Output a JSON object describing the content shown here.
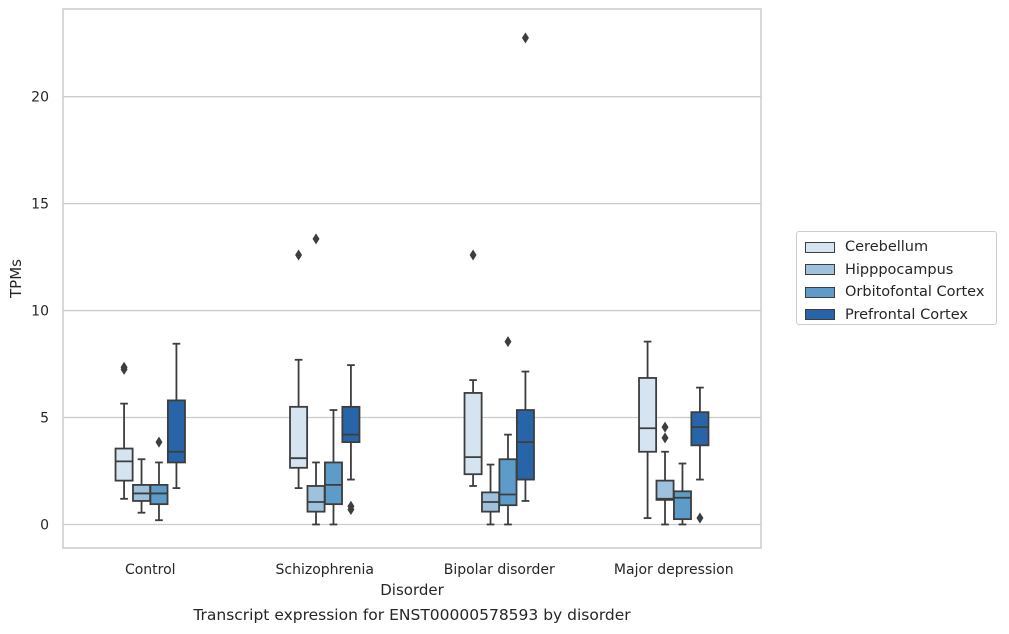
{
  "chart_data": {
    "type": "box",
    "xlabel": "Disorder",
    "ylabel": "TPMs",
    "caption": "Transcript expression for ENST00000578593 by disorder",
    "categories": [
      "Control",
      "Schizophrenia",
      "Bipolar disorder",
      "Major depression"
    ],
    "ylim": [
      -1.1,
      24.1
    ],
    "yticks": [
      0,
      5,
      10,
      15,
      20
    ],
    "grid": "horizontal",
    "legend_position": "right",
    "series": [
      {
        "name": "Cerebellum",
        "color": "#d6e4f2",
        "boxes": [
          {
            "whislo": 1.2,
            "q1": 2.05,
            "med": 2.95,
            "q3": 3.55,
            "whishi": 5.65,
            "fliers": [
              7.25,
              7.35
            ]
          },
          {
            "whislo": 1.7,
            "q1": 2.65,
            "med": 3.1,
            "q3": 5.5,
            "whishi": 7.7,
            "fliers": [
              12.6
            ]
          },
          {
            "whislo": 1.8,
            "q1": 2.35,
            "med": 3.15,
            "q3": 6.15,
            "whishi": 6.75,
            "fliers": [
              12.6
            ]
          },
          {
            "whislo": 0.3,
            "q1": 3.4,
            "med": 4.5,
            "q3": 6.85,
            "whishi": 8.55,
            "fliers": []
          }
        ]
      },
      {
        "name": "Hipppocampus",
        "color": "#9ec2de",
        "boxes": [
          {
            "whislo": 0.55,
            "q1": 1.1,
            "med": 1.45,
            "q3": 1.85,
            "whishi": 3.05,
            "fliers": []
          },
          {
            "whislo": 0.0,
            "q1": 0.6,
            "med": 1.05,
            "q3": 1.8,
            "whishi": 2.9,
            "fliers": [
              13.35
            ]
          },
          {
            "whislo": 0.0,
            "q1": 0.6,
            "med": 1.05,
            "q3": 1.5,
            "whishi": 2.8,
            "fliers": []
          },
          {
            "whislo": 0.0,
            "q1": 1.15,
            "med": 1.2,
            "q3": 2.05,
            "whishi": 3.4,
            "fliers": [
              4.05,
              4.55
            ]
          }
        ]
      },
      {
        "name": "Orbitofontal Cortex",
        "color": "#5d9cc8",
        "boxes": [
          {
            "whislo": 0.2,
            "q1": 0.95,
            "med": 1.45,
            "q3": 1.85,
            "whishi": 2.9,
            "fliers": [
              3.85
            ]
          },
          {
            "whislo": 0.0,
            "q1": 0.95,
            "med": 1.85,
            "q3": 2.9,
            "whishi": 5.35,
            "fliers": []
          },
          {
            "whislo": 0.0,
            "q1": 0.9,
            "med": 1.4,
            "q3": 3.05,
            "whishi": 4.2,
            "fliers": [
              8.55
            ]
          },
          {
            "whislo": 0.0,
            "q1": 0.25,
            "med": 1.25,
            "q3": 1.55,
            "whishi": 2.85,
            "fliers": []
          }
        ]
      },
      {
        "name": "Prefrontal Cortex",
        "color": "#2765a8",
        "boxes": [
          {
            "whislo": 1.7,
            "q1": 2.9,
            "med": 3.4,
            "q3": 5.8,
            "whishi": 8.45,
            "fliers": []
          },
          {
            "whislo": 2.1,
            "q1": 3.85,
            "med": 4.2,
            "q3": 5.5,
            "whishi": 7.45,
            "fliers": [
              0.7,
              0.85
            ]
          },
          {
            "whislo": 1.1,
            "q1": 2.1,
            "med": 3.85,
            "q3": 5.35,
            "whishi": 7.15,
            "fliers": [
              22.75
            ]
          },
          {
            "whislo": 2.1,
            "q1": 3.7,
            "med": 4.55,
            "q3": 5.25,
            "whishi": 6.4,
            "fliers": [
              0.3
            ]
          }
        ]
      }
    ]
  }
}
